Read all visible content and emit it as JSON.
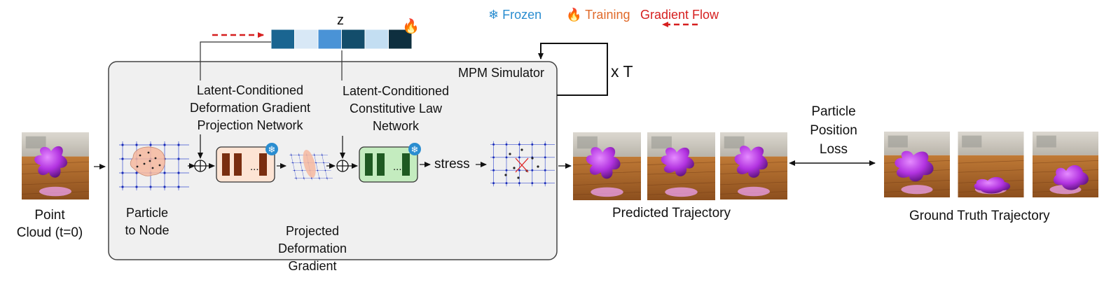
{
  "latent": {
    "label": "z",
    "swatches": [
      "#1a6591",
      "#d8e8f6",
      "#4a93d6",
      "#134d6b",
      "#c3def2",
      "#0e2f3f"
    ]
  },
  "legend": {
    "frozen": "Frozen",
    "training": "Training",
    "gradient": "Gradient Flow",
    "frozen_color": "#2a8dd0",
    "training_color": "#e06a2a",
    "gradient_color": "#d61f1f",
    "frozen_icon": "snowflake-icon",
    "training_icon": "fire-icon"
  },
  "simulator": {
    "title": "MPM Simulator",
    "loop": "x T"
  },
  "labels": {
    "point_cloud_1": "Point",
    "point_cloud_2": "Cloud (t=0)",
    "particle_to_node_1": "Particle",
    "particle_to_node_2": "to Node",
    "deform_net_1": "Latent-Conditioned",
    "deform_net_2": "Deformation Gradient",
    "deform_net_3": "Projection Network",
    "const_net_1": "Latent-Conditioned",
    "const_net_2": "Constitutive Law",
    "const_net_3": "Network",
    "projected_1": "Projected",
    "projected_2": "Deformation",
    "projected_3": "Gradient",
    "stress": "stress",
    "predicted": "Predicted Trajectory",
    "loss_1": "Particle",
    "loss_2": "Position",
    "loss_3": "Loss",
    "ground_truth": "Ground Truth Trajectory"
  },
  "blocks": {
    "deform": {
      "fill": "#fde4d4",
      "bar": "#7a2e10",
      "dots": "..."
    },
    "const": {
      "fill": "#c4ecbf",
      "bar": "#1f5a22",
      "dots": "..."
    }
  }
}
